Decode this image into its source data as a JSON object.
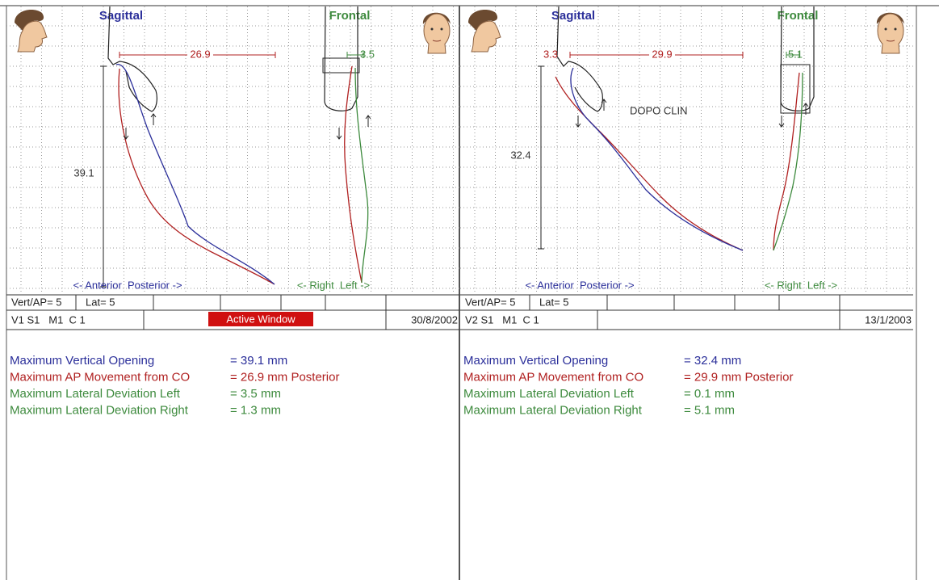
{
  "panels": [
    {
      "sagittal_title": "Sagittal",
      "frontal_title": "Frontal",
      "ap_movement": "26.9",
      "lateral_measure": "3.5",
      "vertical_measure": "39.1",
      "ap_axis": "<- Anterior  Posterior ->",
      "lateral_axis": "<- Right  Left ->",
      "scale_vert_ap": "Vert/AP= 5",
      "scale_lat": "Lat= 5",
      "record": "V1 S1   M1  C 1",
      "status": "Active Window",
      "date": "30/8/2002",
      "results": [
        {
          "label": "Maximum Vertical Opening",
          "value": "= 39.1 mm"
        },
        {
          "label": "Maximum AP Movement from CO",
          "value": "= 26.9 mm Posterior"
        },
        {
          "label": "Maximum Lateral Deviation Left",
          "value": "= 3.5 mm"
        },
        {
          "label": "Maximum Lateral Deviation Right",
          "value": "= 1.3 mm"
        }
      ]
    },
    {
      "sagittal_title": "Sagittal",
      "frontal_title": "Frontal",
      "ap_offset": "3.3",
      "ap_movement": "29.9",
      "lateral_measure": "5.1",
      "vertical_measure": "32.4",
      "note": "DOPO CLIN",
      "ap_axis": "<- Anterior  Posterior ->",
      "lateral_axis": "<- Right  Left ->",
      "scale_vert_ap": "Vert/AP= 5",
      "scale_lat": "Lat= 5",
      "record": "V2 S1   M1  C 1",
      "date": "13/1/2003",
      "results": [
        {
          "label": "Maximum Vertical Opening",
          "value": "= 32.4 mm"
        },
        {
          "label": "Maximum AP Movement from CO",
          "value": "= 29.9 mm Posterior"
        },
        {
          "label": "Maximum Lateral Deviation Left",
          "value": "= 0.1 mm"
        },
        {
          "label": "Maximum Lateral Deviation Right",
          "value": "= 5.1 mm"
        }
      ]
    }
  ]
}
